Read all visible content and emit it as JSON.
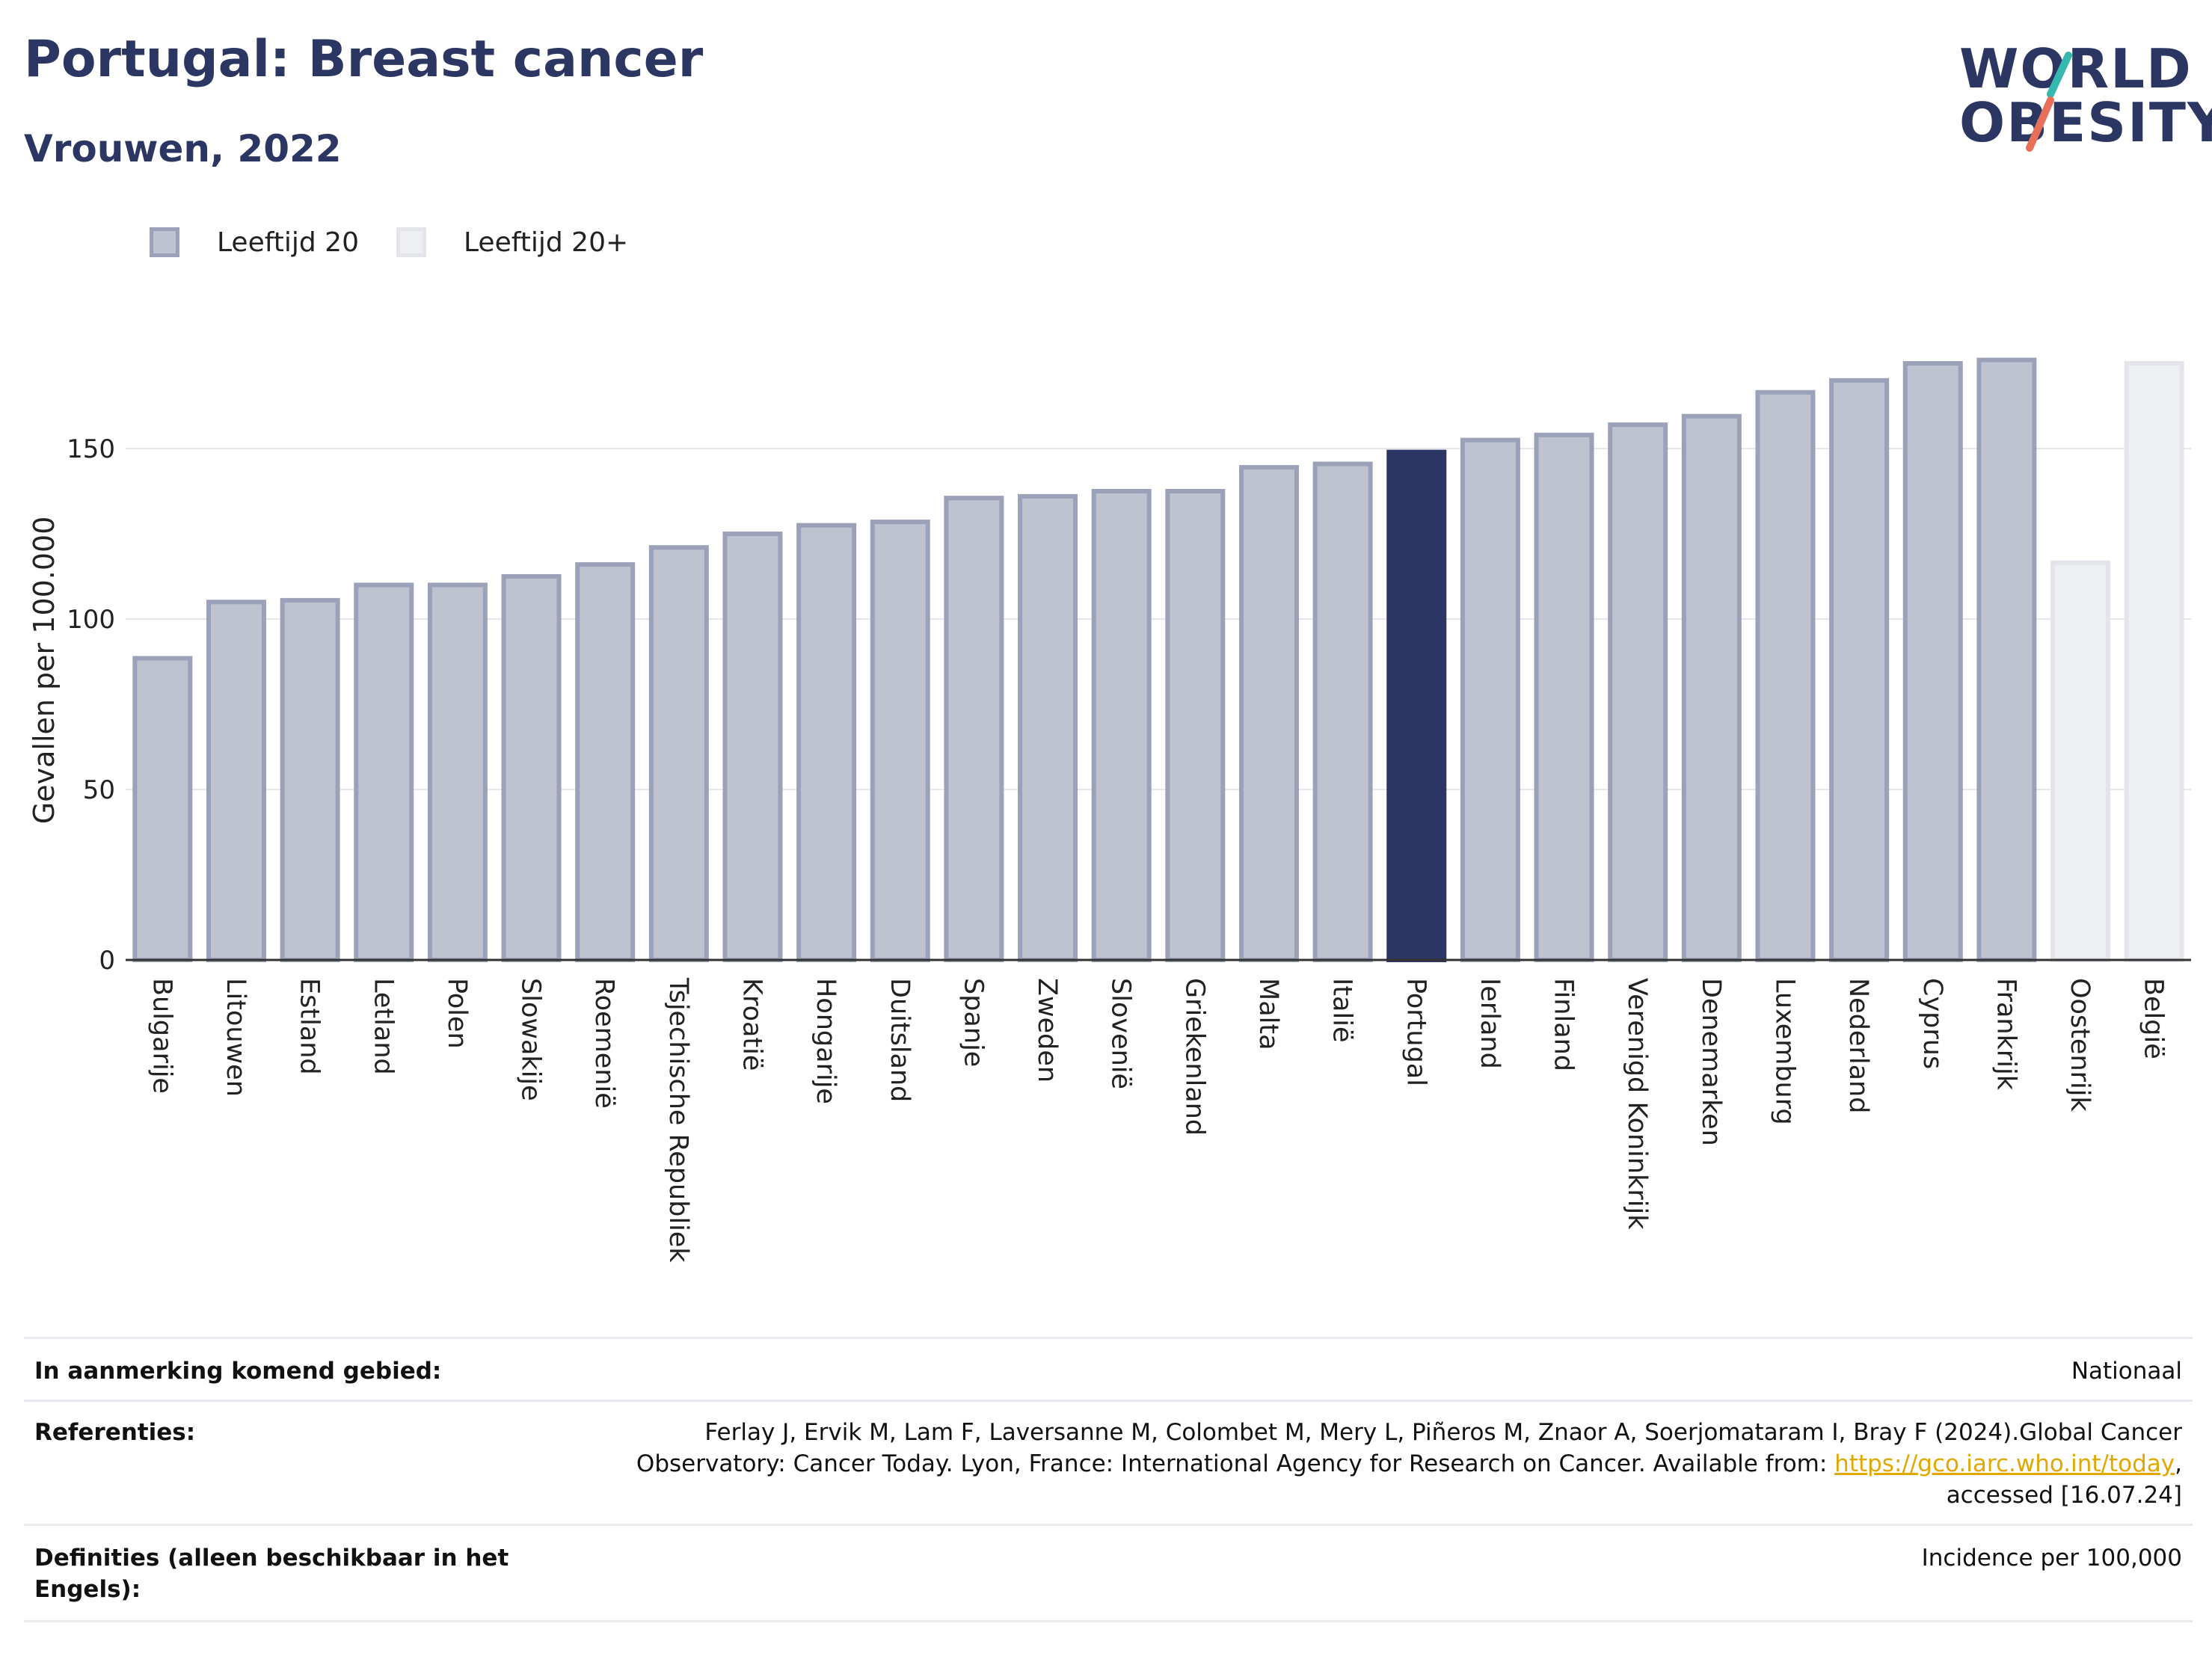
{
  "header": {
    "title": "Portugal: Breast cancer",
    "subtitle": "Vrouwen, 2022"
  },
  "logo": {
    "line1": "WORLD",
    "line2": "OBESITY"
  },
  "colors": {
    "main_bar": "#bfc3cf",
    "main_bar_border": "#9aa1b8",
    "highlight_bar": "#2b3663",
    "light_bar": "#eeeff3",
    "light_bar_border": "#e3e5ea",
    "logo_teal": "#35b8b0",
    "logo_coral": "#e8705a"
  },
  "chart_data": {
    "type": "bar",
    "ylabel": "Gevallen per 100.000",
    "ylim": [
      0,
      190
    ],
    "yticks": [
      0,
      50,
      100,
      150
    ],
    "grid": true,
    "legend": {
      "placement": "top-left",
      "entries": [
        "Leeftijd 20",
        "Leeftijd 20+"
      ]
    },
    "highlight": "Portugal",
    "categories": [
      "Bulgarije",
      "Litouwen",
      "Estland",
      "Letland",
      "Polen",
      "Slowakije",
      "Roemenië",
      "Tsjechische Republiek",
      "Kroatië",
      "Hongarije",
      "Duitsland",
      "Spanje",
      "Zweden",
      "Slovenië",
      "Griekenland",
      "Malta",
      "Italië",
      "Portugal",
      "Ierland",
      "Finland",
      "Verenigd Koninkrijk",
      "Denemarken",
      "Luxemburg",
      "Nederland",
      "Cyprus",
      "Frankrijk",
      "Oostenrijk",
      "België"
    ],
    "values": [
      88.5,
      105,
      105.5,
      110,
      110,
      112.5,
      116,
      121,
      125,
      127.5,
      128.5,
      135.5,
      136,
      137.5,
      137.5,
      144.5,
      145.5,
      149,
      152.5,
      154,
      157,
      159.5,
      166.5,
      170,
      175,
      176,
      116.5,
      175
    ],
    "groups": [
      "Leeftijd 20",
      "Leeftijd 20",
      "Leeftijd 20",
      "Leeftijd 20",
      "Leeftijd 20",
      "Leeftijd 20",
      "Leeftijd 20",
      "Leeftijd 20",
      "Leeftijd 20",
      "Leeftijd 20",
      "Leeftijd 20",
      "Leeftijd 20",
      "Leeftijd 20",
      "Leeftijd 20",
      "Leeftijd 20",
      "Leeftijd 20",
      "Leeftijd 20",
      "Leeftijd 20",
      "Leeftijd 20",
      "Leeftijd 20",
      "Leeftijd 20",
      "Leeftijd 20",
      "Leeftijd 20",
      "Leeftijd 20",
      "Leeftijd 20",
      "Leeftijd 20",
      "Leeftijd 20+",
      "Leeftijd 20+"
    ]
  },
  "info": {
    "area_label": "In aanmerking komend gebied:",
    "area_value": "Nationaal",
    "references_label": "Referenties:",
    "references_line1": "Ferlay J, Ervik M, Lam F, Laversanne M, Colombet M, Mery L, Piñeros M, Znaor A, Soerjomataram I, Bray F (2024).Global Cancer",
    "references_line2_prefix": "Observatory: Cancer Today. Lyon, France: International Agency for Research on Cancer. Available from: ",
    "references_link": "https://gco.iarc.who.int/today",
    "references_line2_suffix": ",",
    "references_line3": "accessed [16.07.24]",
    "definitions_label": "Definities (alleen beschikbaar in het Engels):",
    "definitions_value": "Incidence per 100,000"
  }
}
